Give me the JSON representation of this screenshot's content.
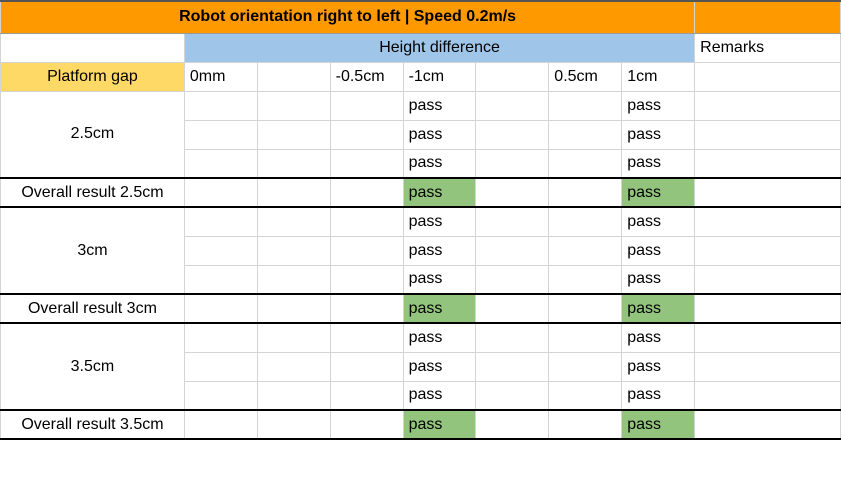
{
  "title": "Robot orientation right to left | Speed 0.2m/s",
  "header": {
    "height_difference": "Height difference",
    "remarks": "Remarks",
    "platform_gap": "Platform gap",
    "cols": [
      "0mm",
      "",
      "-0.5cm",
      "-1cm",
      "",
      "0.5cm",
      "1cm"
    ]
  },
  "groups": [
    {
      "gap": "2.5cm",
      "rows": [
        [
          "",
          "",
          "",
          "pass",
          "",
          "",
          "pass"
        ],
        [
          "",
          "",
          "",
          "pass",
          "",
          "",
          "pass"
        ],
        [
          "",
          "",
          "",
          "pass",
          "",
          "",
          "pass"
        ]
      ],
      "overall_label": "Overall result 2.5cm",
      "overall": [
        "",
        "",
        "",
        "pass",
        "",
        "",
        "pass"
      ]
    },
    {
      "gap": "3cm",
      "rows": [
        [
          "",
          "",
          "",
          "pass",
          "",
          "",
          "pass"
        ],
        [
          "",
          "",
          "",
          "pass",
          "",
          "",
          "pass"
        ],
        [
          "",
          "",
          "",
          "pass",
          "",
          "",
          "pass"
        ]
      ],
      "overall_label": "Overall result 3cm",
      "overall": [
        "",
        "",
        "",
        "pass",
        "",
        "",
        "pass"
      ]
    },
    {
      "gap": "3.5cm",
      "rows": [
        [
          "",
          "",
          "",
          "pass",
          "",
          "",
          "pass"
        ],
        [
          "",
          "",
          "",
          "pass",
          "",
          "",
          "pass"
        ],
        [
          "",
          "",
          "",
          "pass",
          "",
          "",
          "pass"
        ]
      ],
      "overall_label": "Overall result 3.5cm",
      "overall": [
        "",
        "",
        "",
        "pass",
        "",
        "",
        "pass"
      ]
    }
  ],
  "colors": {
    "title_bg": "#ff9900",
    "height_difference_bg": "#9fc5e8",
    "platform_gap_bg": "#ffd966",
    "pass_highlight": "#93c47d"
  }
}
